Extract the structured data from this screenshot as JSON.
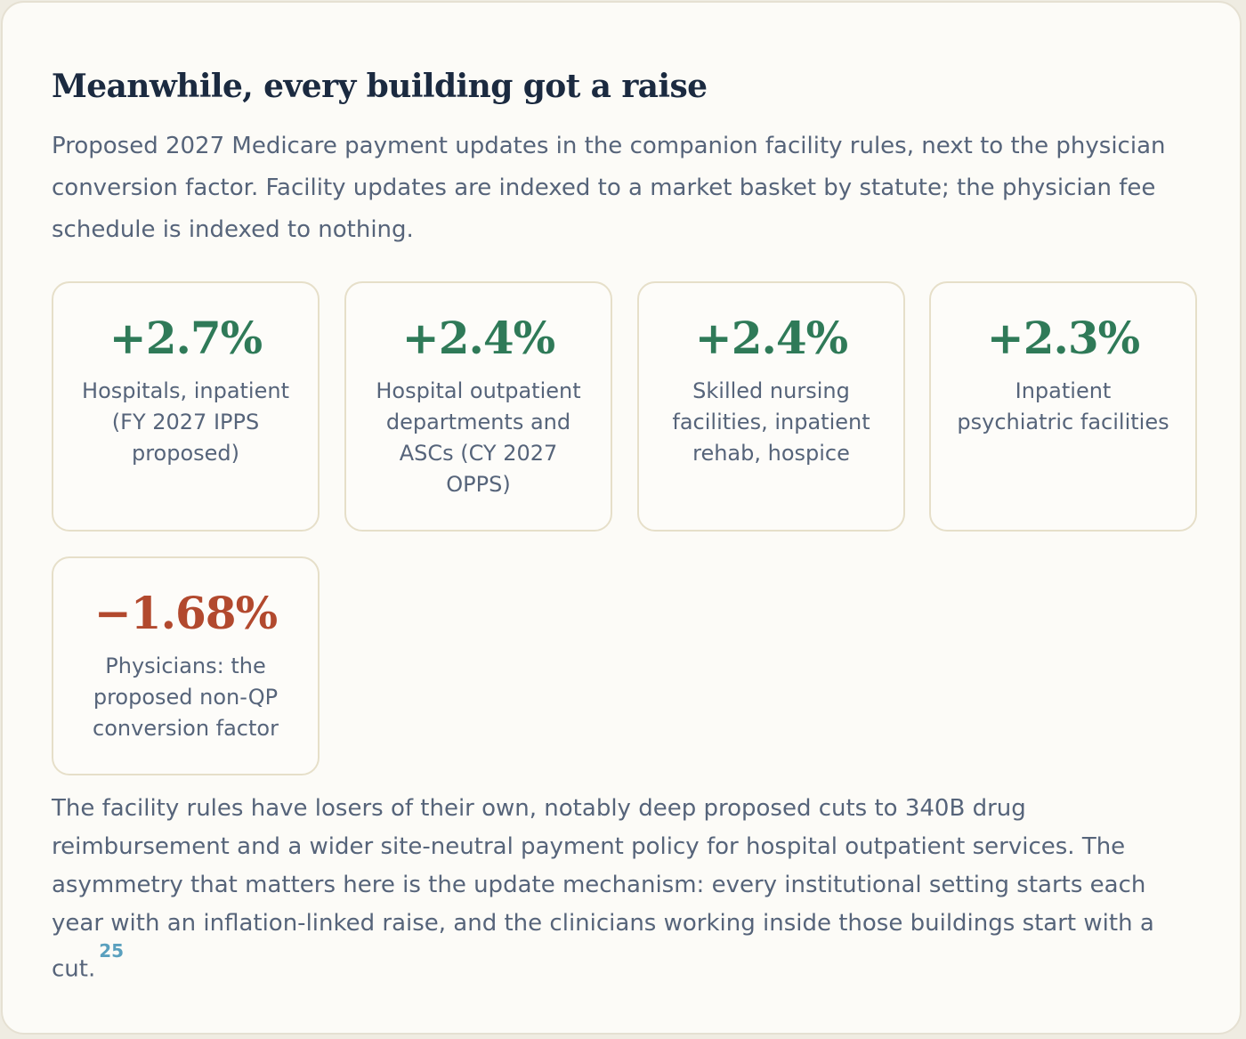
{
  "title": "Meanwhile, every building got a raise",
  "intro": "Proposed 2027 Medicare payment updates in the companion facility rules, next to the physician conversion factor. Facility updates are indexed to a market basket by statute; the physician fee schedule is indexed to nothing.",
  "stats": [
    {
      "value": "+2.7%",
      "label": "Hospitals, inpatient (FY 2027 IPPS proposed)",
      "tone": "positive",
      "color": "#2f7a58"
    },
    {
      "value": "+2.4%",
      "label": "Hospital outpatient departments and ASCs (CY 2027 OPPS)",
      "tone": "positive",
      "color": "#2f7a58"
    },
    {
      "value": "+2.4%",
      "label": "Skilled nursing facilities, inpatient rehab, hospice",
      "tone": "positive",
      "color": "#2f7a58"
    },
    {
      "value": "+2.3%",
      "label": "Inpatient psychiatric facilities",
      "tone": "positive",
      "color": "#2f7a58"
    },
    {
      "value": "−1.68%",
      "label": "Physicians: the proposed non-QP conversion factor",
      "tone": "negative",
      "color": "#b2492e"
    }
  ],
  "closing": {
    "text": "The facility rules have losers of their own, notably deep proposed cuts to 340B drug reimbursement and a wider site-neutral payment policy for hospital outpatient services. The asymmetry that matters here is the update mechanism: every institutional setting starts each year with an inflation-linked raise, and the clinicians working inside those buildings start with a cut.",
    "footnote": "25"
  },
  "colors": {
    "title": "#1b2a40",
    "body_text": "#56647a",
    "positive": "#2f7a58",
    "negative": "#b2492e",
    "footnote_link": "#5aa0be",
    "card_background": "#fcfbf7",
    "card_border": "#e6dfc9"
  }
}
